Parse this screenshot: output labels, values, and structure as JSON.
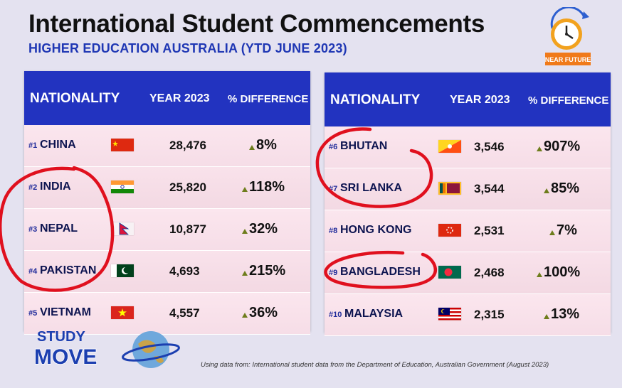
{
  "header": {
    "title": "International Student Commencements",
    "subtitle": "HIGHER EDUCATION AUSTRALIA  (YTD JUNE 2023)"
  },
  "logo_top": {
    "text": "NEAR FUTURE"
  },
  "columns": {
    "nationality": "NATIONALITY",
    "year": "YEAR 2023",
    "diff": "% DIFFERENCE"
  },
  "chart_data": {
    "type": "table",
    "columns": [
      "NATIONALITY",
      "YEAR 2023",
      "% DIFFERENCE"
    ],
    "rows": [
      {
        "rank": "#1",
        "country": "CHINA",
        "year_2023": "28,476",
        "difference": "8%",
        "flag": "china"
      },
      {
        "rank": "#2",
        "country": "INDIA",
        "year_2023": "25,820",
        "difference": "118%",
        "flag": "india"
      },
      {
        "rank": "#3",
        "country": "NEPAL",
        "year_2023": "10,877",
        "difference": "32%",
        "flag": "nepal"
      },
      {
        "rank": "#4",
        "country": "PAKISTAN",
        "year_2023": "4,693",
        "difference": "215%",
        "flag": "pakistan"
      },
      {
        "rank": "#5",
        "country": "VIETNAM",
        "year_2023": "4,557",
        "difference": "36%",
        "flag": "vietnam"
      },
      {
        "rank": "#6",
        "country": "BHUTAN",
        "year_2023": "3,546",
        "difference": "907%",
        "flag": "bhutan"
      },
      {
        "rank": "#7",
        "country": "SRI LANKA",
        "year_2023": "3,544",
        "difference": "85%",
        "flag": "srilanka"
      },
      {
        "rank": "#8",
        "country": "HONG KONG",
        "year_2023": "2,531",
        "difference": "7%",
        "flag": "hongkong"
      },
      {
        "rank": "#9",
        "country": "BANGLADESH",
        "year_2023": "2,468",
        "difference": "100%",
        "flag": "bangladesh"
      },
      {
        "rank": "#10",
        "country": "MALAYSIA",
        "year_2023": "2,315",
        "difference": "13%",
        "flag": "malaysia"
      }
    ],
    "trend_marker_color": "#6e7d1c",
    "annotation_color": "#e0101e"
  },
  "brand": {
    "line1": "STUDY",
    "line2": "MOVE"
  },
  "source": "Using data from: International student data from the Department of Education, Australian Government (August 2023)",
  "colors": {
    "header_bar": "#2233c0",
    "subtitle": "#1f37b4",
    "background": "#e4e2f0"
  }
}
